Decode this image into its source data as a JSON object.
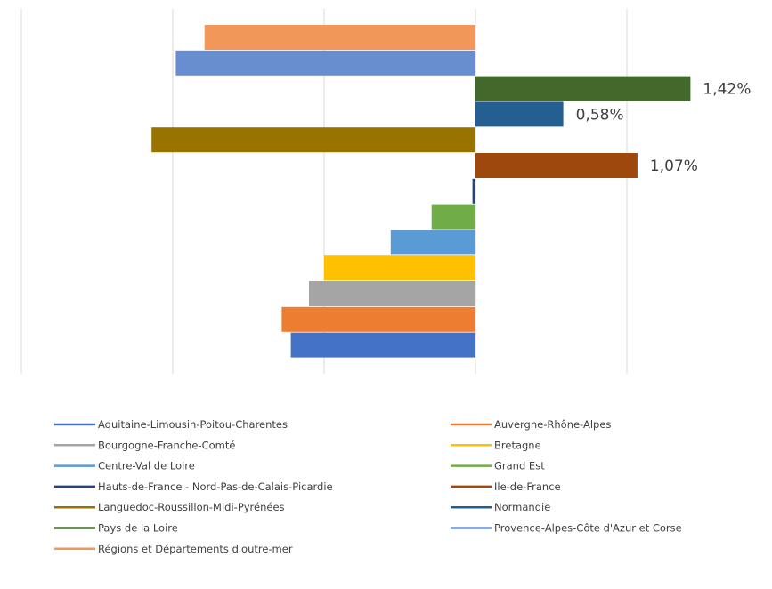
{
  "chart_data": {
    "type": "bar",
    "orientation": "horizontal",
    "grid": true,
    "legend_position": "bottom",
    "xlim": [
      -3,
      2
    ],
    "categories": [
      "Aquitaine-Limousin-Poitou-Charentes",
      "Auvergne-Rhône-Alpes",
      "Bourgogne-Franche-Comté",
      "Bretagne",
      "Centre-Val de Loire",
      "Grand Est",
      "Hauts-de-France - Nord-Pas-de-Calais-Picardie",
      "Ile-de-France",
      "Languedoc-Roussillon-Midi-Pyrénées",
      "Normandie",
      "Pays de la Loire",
      "Provence-Alpes-Côte d'Azur et Corse",
      "Régions et Départements d'outre-mer"
    ],
    "series": [
      {
        "name": "Aquitaine-Limousin-Poitou-Charentes",
        "value": -1.22,
        "color": "#4472C4",
        "label": ""
      },
      {
        "name": "Auvergne-Rhône-Alpes",
        "value": -1.28,
        "color": "#ED7D31",
        "label": ""
      },
      {
        "name": "Bourgogne-Franche-Comté",
        "value": -1.1,
        "color": "#A5A5A5",
        "label": ""
      },
      {
        "name": "Bretagne",
        "value": -1.0,
        "color": "#FFC000",
        "label": ""
      },
      {
        "name": "Centre-Val de Loire",
        "value": -0.56,
        "color": "#5B9BD5",
        "label": ""
      },
      {
        "name": "Grand Est",
        "value": -0.29,
        "color": "#70AD47",
        "label": ""
      },
      {
        "name": "Hauts-de-France - Nord-Pas-de-Calais-Picardie",
        "value": -0.02,
        "color": "#264478",
        "label": ""
      },
      {
        "name": "Ile-de-France",
        "value": 1.07,
        "color": "#9E480E",
        "label": "1,07%"
      },
      {
        "name": "Languedoc-Roussillon-Midi-Pyrénées",
        "value": -2.14,
        "color": "#997300",
        "label": ""
      },
      {
        "name": "Normandie",
        "value": 0.58,
        "color": "#255E91",
        "label": "0,58%"
      },
      {
        "name": "Pays de la Loire",
        "value": 1.42,
        "color": "#43682B",
        "label": "1,42%"
      },
      {
        "name": "Provence-Alpes-Côte d'Azur et Corse",
        "value": -1.98,
        "color": "#698ED0",
        "label": ""
      },
      {
        "name": "Régions et Départements d'outre-mer",
        "value": -1.79,
        "color": "#F1975A",
        "label": ""
      }
    ]
  }
}
